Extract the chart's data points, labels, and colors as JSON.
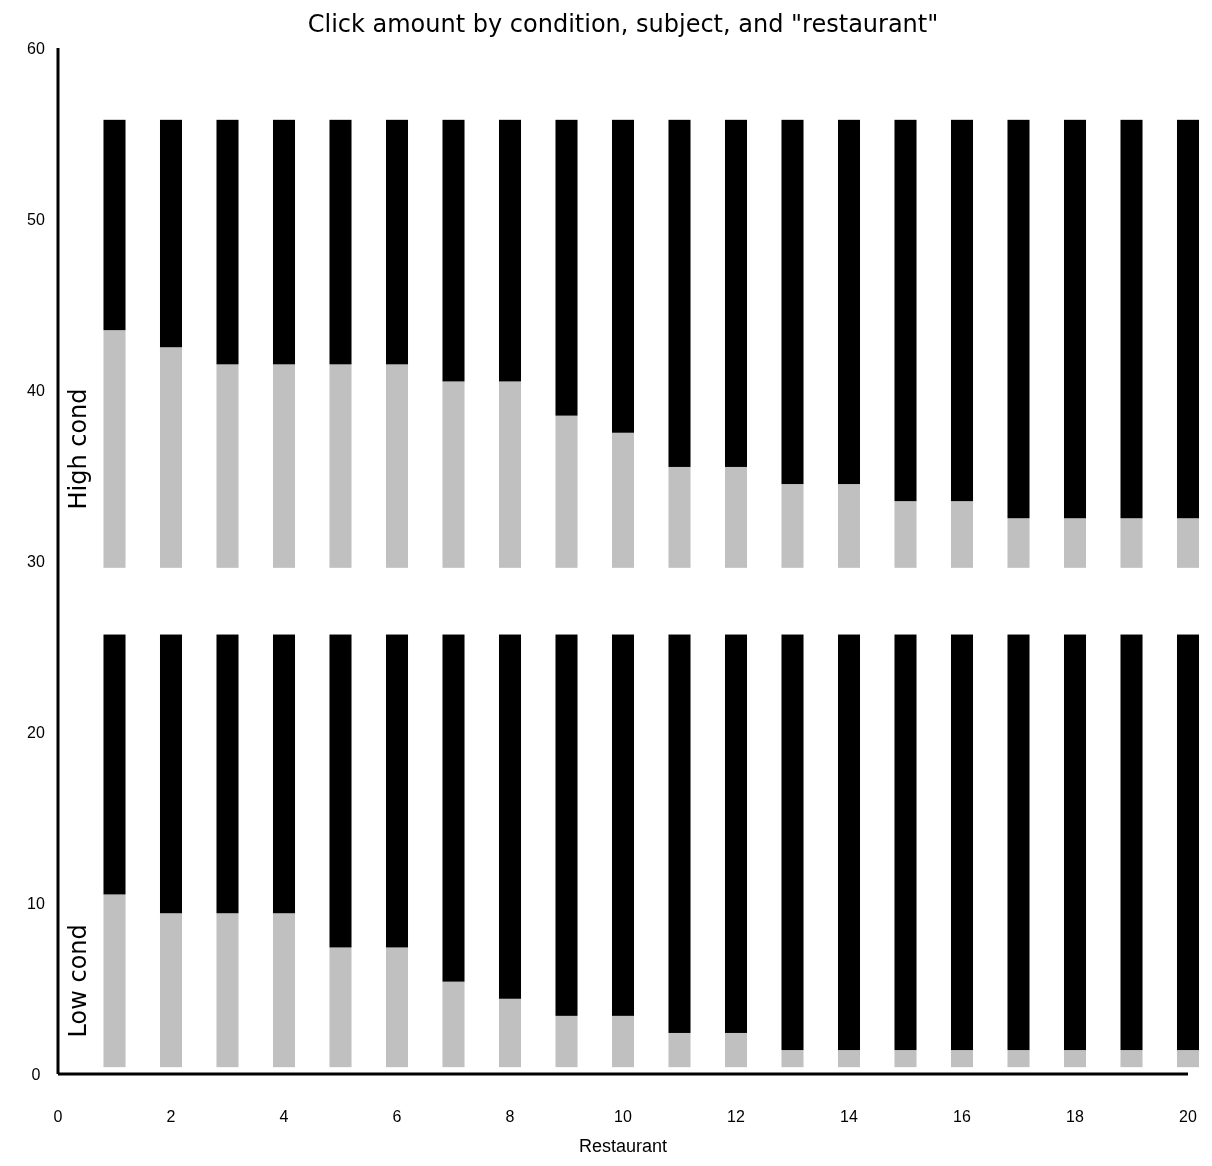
{
  "chart_data": {
    "type": "bar",
    "title": "Click amount by condition, subject, and \"restaurant\"",
    "xlabel": "Restaurant",
    "annotations": [
      "High cond",
      "Low cond"
    ],
    "x": [
      1,
      2,
      3,
      4,
      5,
      6,
      7,
      8,
      9,
      10,
      11,
      12,
      13,
      14,
      15,
      16,
      17,
      18,
      19,
      20
    ],
    "xlim": [
      0,
      20
    ],
    "xticks": [
      0,
      2,
      4,
      6,
      8,
      10,
      12,
      14,
      16,
      18,
      20
    ],
    "ylim": [
      0,
      60
    ],
    "yticks": [
      0,
      10,
      20,
      30,
      40,
      50,
      60
    ],
    "grid": false,
    "series": [
      {
        "color": "#c0c0c0",
        "base": [
          29.6,
          29.6,
          29.6,
          29.6,
          29.6,
          29.6,
          29.6,
          29.6,
          29.6,
          29.6,
          29.6,
          29.6,
          29.6,
          29.6,
          29.6,
          29.6,
          29.6,
          29.6,
          29.6,
          29.6
        ],
        "values": [
          13.9,
          12.9,
          11.9,
          11.9,
          11.9,
          11.9,
          10.9,
          10.9,
          8.9,
          7.9,
          5.9,
          5.9,
          4.9,
          4.9,
          3.9,
          3.9,
          2.9,
          2.9,
          2.9,
          2.9
        ]
      },
      {
        "color": "#000000",
        "base": [
          43.5,
          42.5,
          41.5,
          41.5,
          41.5,
          41.5,
          40.5,
          40.5,
          38.5,
          37.5,
          35.5,
          35.5,
          34.5,
          34.5,
          33.5,
          33.5,
          32.5,
          32.5,
          32.5,
          32.5
        ],
        "values": [
          12.3,
          13.3,
          14.3,
          14.3,
          14.3,
          14.3,
          15.3,
          15.3,
          17.3,
          18.3,
          20.3,
          20.3,
          21.3,
          21.3,
          22.3,
          22.3,
          23.3,
          23.3,
          23.3,
          23.3
        ]
      },
      {
        "color": "#c0c0c0",
        "base": [
          0.4,
          0.4,
          0.4,
          0.4,
          0.4,
          0.4,
          0.4,
          0.4,
          0.4,
          0.4,
          0.4,
          0.4,
          0.4,
          0.4,
          0.4,
          0.4,
          0.4,
          0.4,
          0.4,
          0.4
        ],
        "values": [
          10.1,
          9.0,
          9.0,
          9.0,
          7.0,
          7.0,
          5.0,
          4.0,
          3.0,
          3.0,
          2.0,
          2.0,
          1.0,
          1.0,
          1.0,
          1.0,
          1.0,
          1.0,
          1.0,
          1.0
        ]
      },
      {
        "color": "#000000",
        "base": [
          10.5,
          9.4,
          9.4,
          9.4,
          7.4,
          7.4,
          5.4,
          4.4,
          3.4,
          3.4,
          2.4,
          2.4,
          1.4,
          1.4,
          1.4,
          1.4,
          1.4,
          1.4,
          1.4,
          1.4
        ],
        "values": [
          15.2,
          16.3,
          16.3,
          16.3,
          18.3,
          18.3,
          20.3,
          21.3,
          22.3,
          22.3,
          23.3,
          23.3,
          24.3,
          24.3,
          24.3,
          24.3,
          24.3,
          24.3,
          24.3,
          24.3
        ]
      }
    ]
  }
}
